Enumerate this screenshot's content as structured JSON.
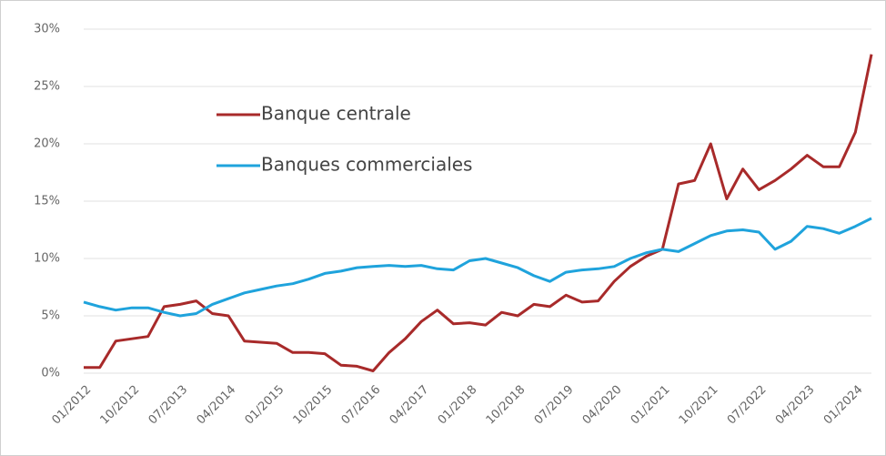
{
  "chart_data": {
    "type": "line",
    "categories": [
      "01/2012",
      null,
      null,
      "10/2012",
      null,
      null,
      "07/2013",
      null,
      null,
      "04/2014",
      null,
      null,
      "01/2015",
      null,
      null,
      "10/2015",
      null,
      null,
      "07/2016",
      null,
      null,
      "04/2017",
      null,
      null,
      "01/2018",
      null,
      null,
      "10/2018",
      null,
      null,
      "07/2019",
      null,
      null,
      "04/2020",
      null,
      null,
      "01/2021",
      null,
      null,
      "10/2021",
      null,
      null,
      "07/2022",
      null,
      null,
      "04/2023",
      null,
      null,
      "01/2024",
      null
    ],
    "series": [
      {
        "name": "Banque centrale",
        "color": "#a82a2a",
        "values": [
          0.5,
          0.5,
          2.8,
          3.0,
          3.2,
          5.8,
          6.0,
          6.3,
          5.2,
          5.0,
          2.8,
          2.7,
          2.6,
          1.8,
          1.8,
          1.7,
          0.7,
          0.6,
          0.2,
          1.8,
          3.0,
          4.5,
          5.5,
          4.3,
          4.4,
          4.2,
          5.3,
          5.0,
          6.0,
          5.8,
          6.8,
          6.2,
          6.3,
          8.0,
          9.3,
          10.2,
          10.8,
          16.5,
          16.8,
          20.0,
          15.2,
          17.8,
          16.0,
          16.8,
          17.8,
          19.0,
          18.0,
          18.0,
          21.0,
          27.8
        ]
      },
      {
        "name": "Banques commerciales",
        "color": "#1fa3dc",
        "values": [
          6.2,
          5.8,
          5.5,
          5.7,
          5.7,
          5.3,
          5.0,
          5.2,
          6.0,
          6.5,
          7.0,
          7.3,
          7.6,
          7.8,
          8.2,
          8.7,
          8.9,
          9.2,
          9.3,
          9.4,
          9.3,
          9.4,
          9.1,
          9.0,
          9.8,
          10.0,
          9.6,
          9.2,
          8.5,
          8.0,
          8.8,
          9.0,
          9.1,
          9.3,
          10.0,
          10.5,
          10.8,
          10.6,
          11.3,
          12.0,
          12.4,
          12.5,
          12.3,
          10.8,
          11.5,
          12.8,
          12.6,
          12.2,
          12.8,
          13.5
        ]
      }
    ],
    "ylim": [
      0,
      30
    ],
    "yticks": [
      {
        "value": 0,
        "label": "0%"
      },
      {
        "value": 5,
        "label": "5%"
      },
      {
        "value": 10,
        "label": "10%"
      },
      {
        "value": 15,
        "label": "15%"
      },
      {
        "value": 20,
        "label": "20%"
      },
      {
        "value": 25,
        "label": "25%"
      },
      {
        "value": 30,
        "label": "30%"
      }
    ],
    "grid": true
  }
}
